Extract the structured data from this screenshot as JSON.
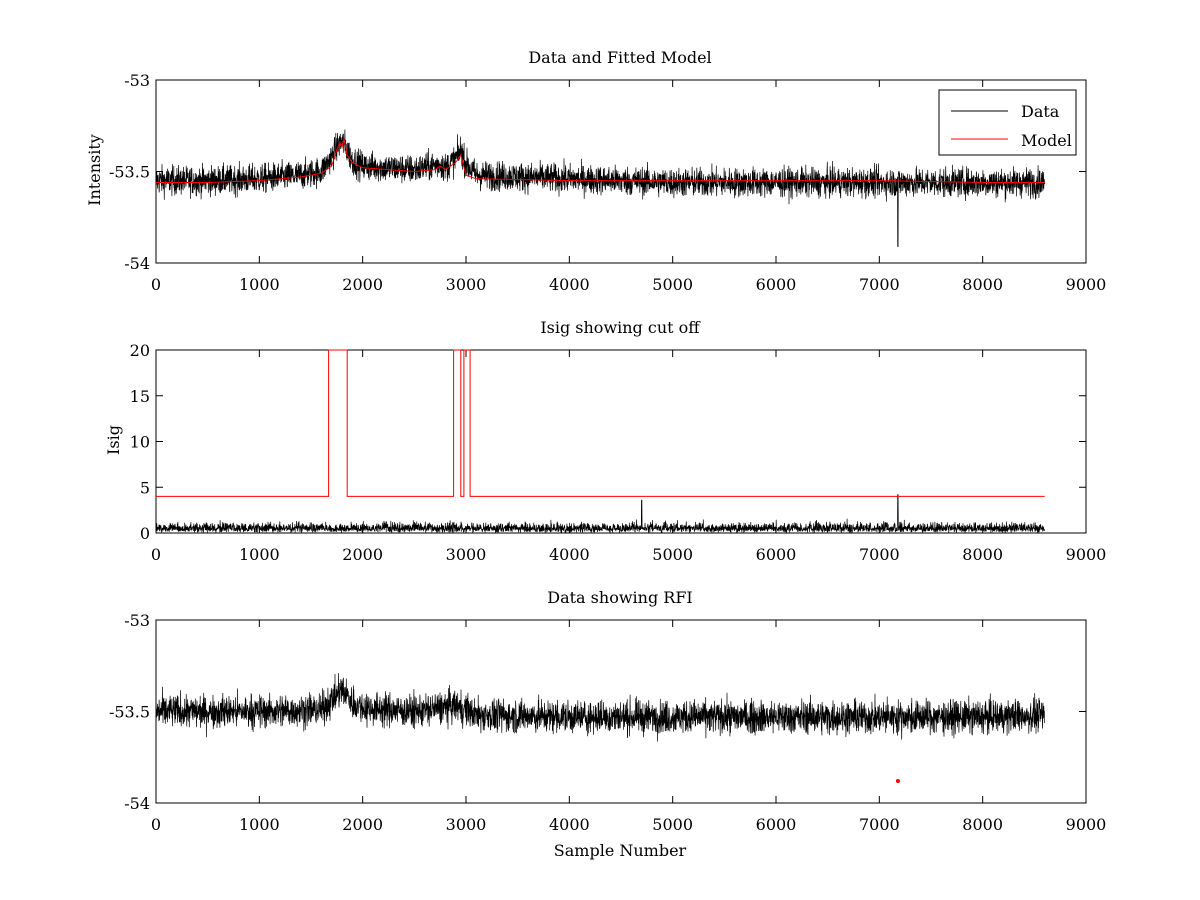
{
  "chart_data": [
    {
      "type": "line",
      "title": "Data and Fitted Model",
      "xlabel": "",
      "ylabel": "Intensity",
      "xlim": [
        0,
        9000
      ],
      "ylim": [
        -54,
        -53
      ],
      "xticks": [
        "0",
        "1000",
        "2000",
        "3000",
        "4000",
        "5000",
        "6000",
        "7000",
        "8000",
        "9000"
      ],
      "yticks": [
        "-54",
        "-53.5",
        "-53"
      ],
      "grid": false,
      "legend": "top-right",
      "series": [
        {
          "name": "Data",
          "color": "#000000",
          "style": "noisy",
          "x": [
            0,
            500,
            1000,
            1400,
            1600,
            1700,
            1760,
            1800,
            1850,
            1900,
            2000,
            2500,
            2750,
            2800,
            2900,
            2950,
            3000,
            3100,
            4000,
            5000,
            6000,
            7000,
            8000,
            8600
          ],
          "y": [
            -53.55,
            -53.55,
            -53.54,
            -53.52,
            -53.5,
            -53.42,
            -53.36,
            -53.33,
            -53.38,
            -53.44,
            -53.47,
            -53.49,
            -53.46,
            -53.48,
            -53.43,
            -53.38,
            -53.46,
            -53.52,
            -53.54,
            -53.56,
            -53.56,
            -53.56,
            -53.56,
            -53.56
          ],
          "noise_amplitude": 0.08
        },
        {
          "name": "Model",
          "color": "#ff0000",
          "x": [
            0,
            500,
            1000,
            1400,
            1600,
            1700,
            1750,
            1780,
            1800,
            1820,
            1850,
            1900,
            2000,
            2500,
            2700,
            2750,
            2800,
            2900,
            2950,
            3000,
            3100,
            4000,
            5000,
            6000,
            7000,
            8000,
            8600
          ],
          "y": [
            -53.56,
            -53.56,
            -53.55,
            -53.53,
            -53.51,
            -53.47,
            -53.38,
            -53.34,
            -53.37,
            -53.32,
            -53.41,
            -53.45,
            -53.48,
            -53.5,
            -53.49,
            -53.47,
            -53.49,
            -53.45,
            -53.41,
            -53.52,
            -53.54,
            -53.55,
            -53.55,
            -53.55,
            -53.55,
            -53.56,
            -53.56
          ]
        }
      ]
    },
    {
      "type": "line",
      "title": "Isig showing cut off",
      "xlabel": "",
      "ylabel": "Isig",
      "xlim": [
        0,
        9000
      ],
      "ylim": [
        0,
        20
      ],
      "xticks": [
        "0",
        "1000",
        "2000",
        "3000",
        "4000",
        "5000",
        "6000",
        "7000",
        "8000",
        "9000"
      ],
      "yticks": [
        "0",
        "5",
        "10",
        "15",
        "20"
      ],
      "grid": false,
      "series": [
        {
          "color": "#000000",
          "style": "noisy-positive",
          "x": [
            0,
            8600
          ],
          "y": [
            0.9,
            0.9
          ],
          "noise_amplitude": 1.2,
          "spikes": [
            {
              "x": 7180,
              "y": 4.2
            },
            {
              "x": 4700,
              "y": 3.6
            }
          ]
        },
        {
          "color": "#ff0000",
          "x": [
            0,
            1670,
            1670,
            1850,
            1850,
            2880,
            2880,
            2950,
            2950,
            2980,
            2980,
            3040,
            3040,
            8600
          ],
          "y": [
            4,
            4,
            20,
            20,
            4,
            4,
            20,
            20,
            4,
            4,
            20,
            20,
            4,
            4
          ]
        }
      ]
    },
    {
      "type": "line",
      "title": "Data showing RFI",
      "xlabel": "Sample Number",
      "ylabel": "",
      "xlim": [
        0,
        9000
      ],
      "ylim": [
        -54,
        -53
      ],
      "xticks": [
        "0",
        "1000",
        "2000",
        "3000",
        "4000",
        "5000",
        "6000",
        "7000",
        "8000",
        "9000"
      ],
      "yticks": [
        "-54",
        "-53.5",
        "-53"
      ],
      "grid": false,
      "series": [
        {
          "color": "#000000",
          "style": "noisy",
          "x": [
            0,
            1000,
            1600,
            1700,
            1800,
            1900,
            2000,
            2500,
            2900,
            3000,
            3100,
            4000,
            5000,
            6000,
            7000,
            8000,
            8600
          ],
          "y": [
            -53.5,
            -53.5,
            -53.49,
            -53.44,
            -53.38,
            -53.45,
            -53.48,
            -53.5,
            -53.47,
            -53.49,
            -53.52,
            -53.53,
            -53.53,
            -53.53,
            -53.53,
            -53.53,
            -53.52
          ],
          "noise_amplitude": 0.09
        },
        {
          "color": "#ff0000",
          "style": "marker",
          "x": [
            7180
          ],
          "y": [
            -53.88
          ]
        }
      ]
    }
  ]
}
